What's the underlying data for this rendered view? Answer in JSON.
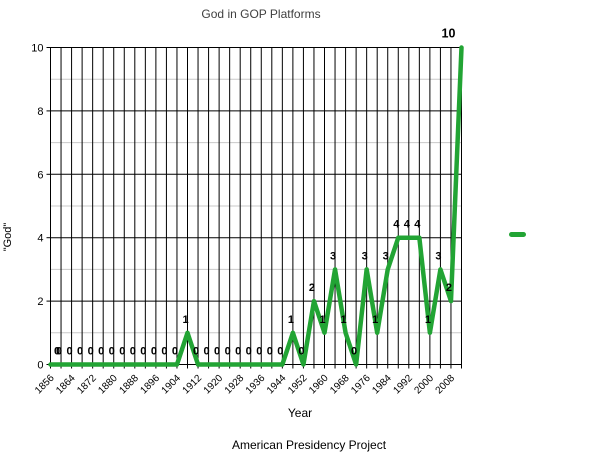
{
  "title": "God in GOP Platforms",
  "source_caption": "American Presidency Project",
  "legend": {
    "series_label": "",
    "marker_color": "#22a434",
    "position": "right"
  },
  "colors": {
    "line": "#22a434",
    "major_grid": "#000000",
    "minor_grid": "#c8c8c8",
    "border": "#000000",
    "text": "#000000",
    "title_text": "#404040"
  },
  "chart_data": {
    "type": "line",
    "title": "God in GOP Platforms",
    "xlabel": "Year",
    "ylabel": "\"God\"",
    "x": [
      1856,
      1860,
      1864,
      1868,
      1872,
      1876,
      1880,
      1884,
      1888,
      1892,
      1896,
      1900,
      1904,
      1908,
      1912,
      1916,
      1920,
      1924,
      1928,
      1932,
      1936,
      1940,
      1944,
      1948,
      1952,
      1956,
      1960,
      1964,
      1968,
      1972,
      1976,
      1980,
      1984,
      1988,
      1992,
      1996,
      2000,
      2004,
      2008,
      2012
    ],
    "values": [
      0,
      0,
      0,
      0,
      0,
      0,
      0,
      0,
      0,
      0,
      0,
      0,
      0,
      1,
      0,
      0,
      0,
      0,
      0,
      0,
      0,
      0,
      0,
      1,
      0,
      2,
      1,
      3,
      1,
      0,
      3,
      1,
      3,
      4,
      4,
      4,
      1,
      3,
      2,
      10
    ],
    "x_tick_labels": [
      "1856",
      "1864",
      "1872",
      "1880",
      "1888",
      "1896",
      "1904",
      "1912",
      "1920",
      "1928",
      "1936",
      "1944",
      "1952",
      "1960",
      "1968",
      "1976",
      "1984",
      "1992",
      "2000",
      "2008"
    ],
    "y_ticks": [
      0,
      2,
      4,
      6,
      8,
      10
    ],
    "ylim": [
      0,
      10
    ],
    "grid": "on",
    "minor_horizontal_grid_values": [
      1,
      3,
      5,
      7,
      9
    ],
    "data_labels": true,
    "legend_position": "right"
  }
}
